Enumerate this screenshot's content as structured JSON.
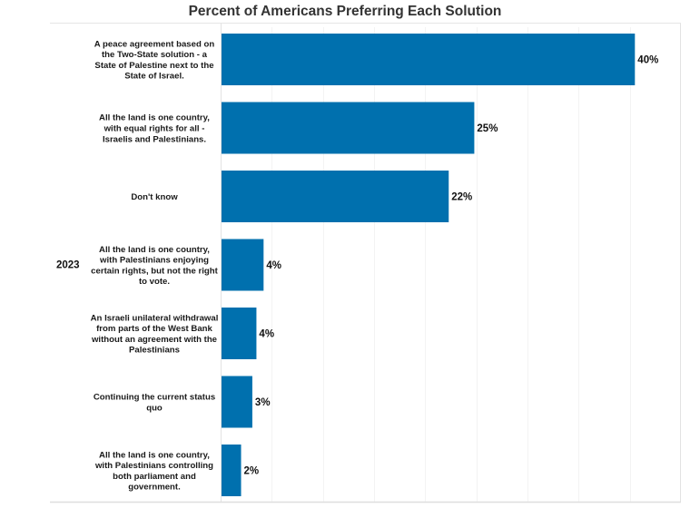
{
  "chart_data": {
    "type": "bar",
    "orientation": "horizontal",
    "title": "Percent of Americans Preferring Each Solution",
    "row_group_label": "2023",
    "categories": [
      [
        "A peace agreement based on",
        "the Two-State solution - a",
        "State of Palestine next to the",
        "State of Israel."
      ],
      [
        "All the land is one country,",
        "with equal rights for all -",
        "Israelis and Palestinians."
      ],
      [
        "Don't know"
      ],
      [
        "All the land is one country,",
        "with Palestinians enjoying",
        "certain rights, but not the right",
        "to vote."
      ],
      [
        "An Israeli unilateral withdrawal",
        "from parts of the West Bank",
        "without an agreement with the",
        "Palestinians"
      ],
      [
        "Continuing the current status",
        "quo"
      ],
      [
        "All the land is one country,",
        "with Palestinians controlling",
        "both parliament and",
        "government."
      ]
    ],
    "values": [
      40.5,
      24.8,
      22.3,
      4.2,
      3.5,
      3.1,
      2.0
    ],
    "value_labels": [
      "40%",
      "25%",
      "22%",
      "4%",
      "4%",
      "3%",
      "2%"
    ],
    "xlim": [
      0,
      45
    ],
    "x_gridline_step": 5,
    "grid": true,
    "xlabel": "",
    "ylabel": "",
    "legend": "none",
    "bar_color": "#0070ae"
  }
}
